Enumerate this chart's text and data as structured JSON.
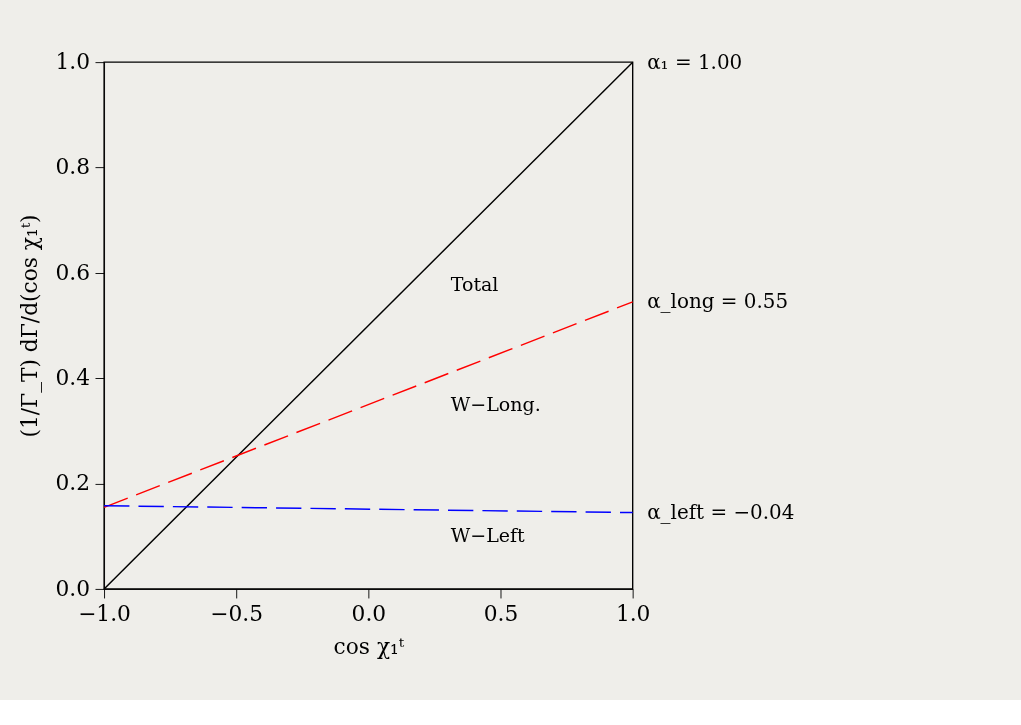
{
  "chart_data": {
    "type": "line",
    "xlabel": "cos χ₁ᵗ",
    "ylabel": "(1/Γ_T)  dΓ/d(cos χ₁ᵗ)",
    "x": [
      -1.0,
      1.0
    ],
    "series": [
      {
        "name": "Total",
        "color": "#000000",
        "values": [
          0.0,
          1.0
        ],
        "line_style": "solid"
      },
      {
        "name": "W−Long.",
        "color": "#ff0000",
        "values": [
          0.155,
          0.545
        ],
        "line_style": "dashed"
      },
      {
        "name": "W−Left",
        "color": "#0000ff",
        "values": [
          0.158,
          0.145
        ],
        "line_style": "dashed"
      }
    ],
    "xlim": [
      -1.0,
      1.0
    ],
    "ylim": [
      0.0,
      1.0
    ],
    "xticks": [
      {
        "value": -1.0,
        "label": "−1.0"
      },
      {
        "value": -0.5,
        "label": "−0.5"
      },
      {
        "value": 0.0,
        "label": "0.0"
      },
      {
        "value": 0.5,
        "label": "0.5"
      },
      {
        "value": 1.0,
        "label": "1.0"
      }
    ],
    "yticks": [
      {
        "value": 0.0,
        "label": "0.0"
      },
      {
        "value": 0.2,
        "label": "0.2"
      },
      {
        "value": 0.4,
        "label": "0.4"
      },
      {
        "value": 0.6,
        "label": "0.6"
      },
      {
        "value": 0.8,
        "label": "0.8"
      },
      {
        "value": 1.0,
        "label": "1.0"
      }
    ],
    "annotations": [
      "α₁ = 1.00",
      "α_long = 0.55",
      "α_left = −0.04"
    ],
    "grid": false,
    "marker": "none"
  }
}
